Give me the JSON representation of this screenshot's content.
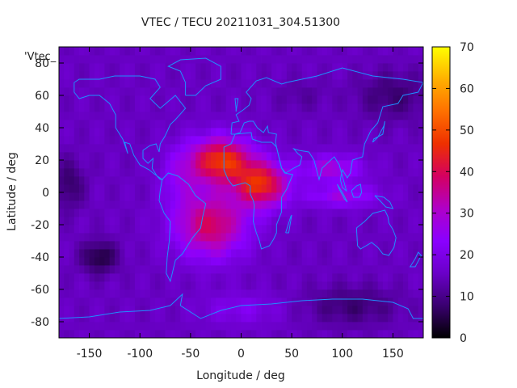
{
  "chart_data": {
    "type": "heatmap",
    "title": "VTEC / TECU 20211031_304.51300",
    "xlabel": "Longitude / deg",
    "ylabel": "Latitude / deg",
    "series_label": "'Vtec_",
    "xlim": [
      -180,
      180
    ],
    "ylim": [
      -90,
      90
    ],
    "x_ticks": [
      -150,
      -100,
      -50,
      0,
      50,
      100,
      150
    ],
    "y_ticks": [
      -80,
      -60,
      -40,
      -20,
      0,
      20,
      40,
      60,
      80
    ],
    "colorbar": {
      "min": 0,
      "max": 70,
      "ticks": [
        0,
        10,
        20,
        30,
        40,
        50,
        60,
        70
      ]
    },
    "background_tecu": 15,
    "anomaly_blobs": [
      {
        "lon": -20,
        "lat": 20,
        "peak": 32,
        "sx": 30,
        "sy": 14
      },
      {
        "lon": 20,
        "lat": 5,
        "peak": 30,
        "sx": 26,
        "sy": 14
      },
      {
        "lon": -30,
        "lat": -20,
        "peak": 24,
        "sx": 35,
        "sy": 20
      },
      {
        "lon": 90,
        "lat": 15,
        "peak": 14,
        "sx": 30,
        "sy": 8
      },
      {
        "lon": 100,
        "lat": -2,
        "peak": 12,
        "sx": 35,
        "sy": 7
      },
      {
        "lon": -60,
        "lat": 10,
        "peak": 8,
        "sx": 20,
        "sy": 18
      },
      {
        "lon": -140,
        "lat": -40,
        "peak": -11,
        "sx": 18,
        "sy": 10
      },
      {
        "lon": 150,
        "lat": 60,
        "peak": -7,
        "sx": 35,
        "sy": 15
      },
      {
        "lon": -170,
        "lat": 5,
        "peak": -8,
        "sx": 15,
        "sy": 15
      },
      {
        "lon": 110,
        "lat": -70,
        "peak": -7,
        "sx": 45,
        "sy": 12
      },
      {
        "lon": 0,
        "lat": -72,
        "peak": 6,
        "sx": 40,
        "sy": 10
      },
      {
        "lon": 60,
        "lat": 60,
        "peak": -3,
        "sx": 25,
        "sy": 10
      }
    ],
    "colors": {
      "palette": [
        "#000000",
        "#3a0070",
        "#6a00c8",
        "#8a00ff",
        "#b000c8",
        "#d40060",
        "#ee3000",
        "#ff7000",
        "#ffb000",
        "#ffff00"
      ],
      "coastline": "#1f8fff",
      "frame": "#000000"
    }
  }
}
